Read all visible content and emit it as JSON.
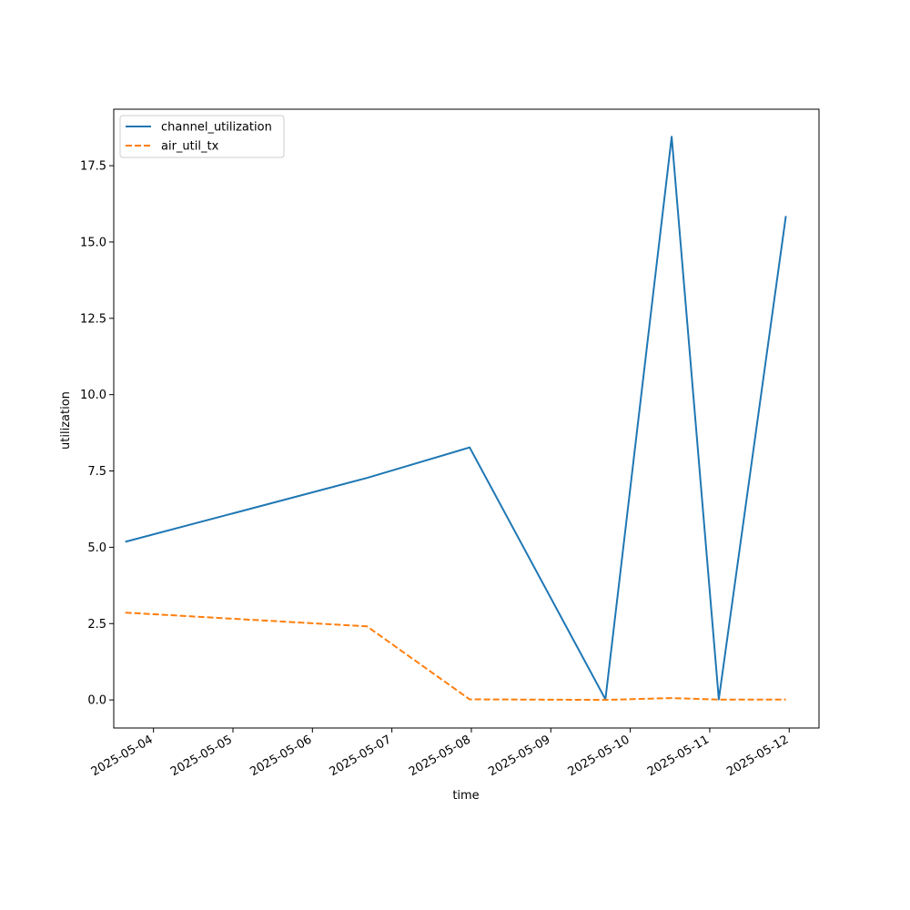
{
  "chart_data": {
    "type": "line",
    "xlabel": "time",
    "ylabel": "utilization",
    "x_type": "datetime",
    "xlim": [
      "2025-05-03T12:00",
      "2025-05-12T09:00"
    ],
    "ylim": [
      -0.92,
      19.35
    ],
    "x_ticks": [
      "2025-05-04",
      "2025-05-05",
      "2025-05-06",
      "2025-05-07",
      "2025-05-08",
      "2025-05-09",
      "2025-05-10",
      "2025-05-11",
      "2025-05-12"
    ],
    "y_ticks": [
      0.0,
      2.5,
      5.0,
      7.5,
      10.0,
      12.5,
      15.0,
      17.5
    ],
    "y_tick_labels": [
      "0.0",
      "2.5",
      "5.0",
      "7.5",
      "10.0",
      "12.5",
      "15.0",
      "17.5"
    ],
    "grid": false,
    "legend_position": "upper-left",
    "series": [
      {
        "name": "channel_utilization",
        "color": "#1f77b4",
        "dash": "solid",
        "points": [
          {
            "x": "2025-05-03T15:30",
            "y": 5.18
          },
          {
            "x": "2025-05-06T16:30",
            "y": 7.27
          },
          {
            "x": "2025-05-07T23:30",
            "y": 8.27
          },
          {
            "x": "2025-05-09T16:30",
            "y": 0.02
          },
          {
            "x": "2025-05-10T12:30",
            "y": 18.45
          },
          {
            "x": "2025-05-11T02:45",
            "y": 0.02
          },
          {
            "x": "2025-05-11T23:00",
            "y": 15.85
          }
        ]
      },
      {
        "name": "air_util_tx",
        "color": "#ff7f0e",
        "dash": "dashed",
        "points": [
          {
            "x": "2025-05-03T15:30",
            "y": 2.86
          },
          {
            "x": "2025-05-06T16:30",
            "y": 2.41
          },
          {
            "x": "2025-05-07T23:30",
            "y": 0.02
          },
          {
            "x": "2025-05-09T16:30",
            "y": 0.0
          },
          {
            "x": "2025-05-10T12:30",
            "y": 0.06
          },
          {
            "x": "2025-05-11T02:45",
            "y": 0.01
          },
          {
            "x": "2025-05-11T23:00",
            "y": 0.01
          }
        ]
      }
    ]
  }
}
